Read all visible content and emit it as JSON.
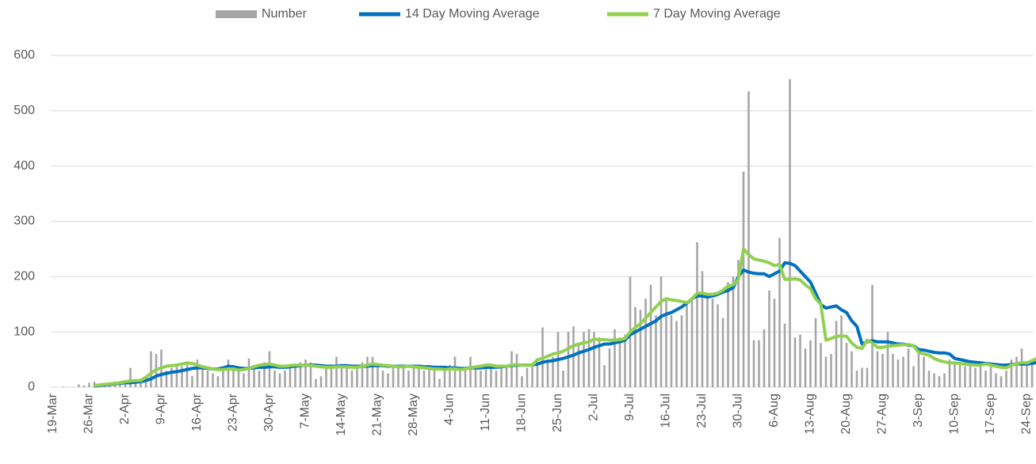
{
  "chart_data": {
    "type": "bar-line",
    "categories": [
      "19-Mar",
      null,
      null,
      null,
      null,
      null,
      null,
      "26-Mar",
      null,
      null,
      null,
      null,
      null,
      null,
      "2-Apr",
      null,
      null,
      null,
      null,
      null,
      null,
      "9-Apr",
      null,
      null,
      null,
      null,
      null,
      null,
      "16-Apr",
      null,
      null,
      null,
      null,
      null,
      null,
      "23-Apr",
      null,
      null,
      null,
      null,
      null,
      null,
      "30-Apr",
      null,
      null,
      null,
      null,
      null,
      null,
      "7-May",
      null,
      null,
      null,
      null,
      null,
      null,
      "14-May",
      null,
      null,
      null,
      null,
      null,
      null,
      "21-May",
      null,
      null,
      null,
      null,
      null,
      null,
      "28-May",
      null,
      null,
      null,
      null,
      null,
      null,
      "4-Jun",
      null,
      null,
      null,
      null,
      null,
      null,
      "11-Jun",
      null,
      null,
      null,
      null,
      null,
      null,
      "18-Jun",
      null,
      null,
      null,
      null,
      null,
      null,
      "25-Jun",
      null,
      null,
      null,
      null,
      null,
      null,
      "2-Jul",
      null,
      null,
      null,
      null,
      null,
      null,
      "9-Jul",
      null,
      null,
      null,
      null,
      null,
      null,
      "16-Jul",
      null,
      null,
      null,
      null,
      null,
      null,
      "23-Jul",
      null,
      null,
      null,
      null,
      null,
      null,
      "30-Jul",
      null,
      null,
      null,
      null,
      null,
      null,
      "6-Aug",
      null,
      null,
      null,
      null,
      null,
      null,
      "13-Aug",
      null,
      null,
      null,
      null,
      null,
      null,
      "20-Aug",
      null,
      null,
      null,
      null,
      null,
      null,
      "27-Aug",
      null,
      null,
      null,
      null,
      null,
      null,
      "3-Sep",
      null,
      null,
      null,
      null,
      null,
      null,
      "10-Sep",
      null,
      null,
      null,
      null,
      null,
      null,
      "17-Sep",
      null,
      null,
      null,
      null,
      null,
      null,
      "24-Sep",
      null,
      null
    ],
    "series": [
      {
        "name": "Number",
        "type": "bar",
        "color": "#a6a6a6",
        "values": [
          0,
          0,
          1,
          0,
          0,
          5,
          3,
          8,
          10,
          5,
          3,
          8,
          10,
          4,
          8,
          35,
          12,
          10,
          15,
          65,
          60,
          68,
          30,
          35,
          40,
          38,
          45,
          20,
          50,
          40,
          30,
          25,
          20,
          35,
          50,
          40,
          30,
          25,
          52,
          40,
          30,
          45,
          65,
          30,
          25,
          30,
          35,
          40,
          45,
          50,
          45,
          15,
          20,
          35,
          40,
          55,
          40,
          35,
          30,
          35,
          45,
          55,
          55,
          40,
          30,
          25,
          35,
          40,
          38,
          30,
          40,
          35,
          30,
          40,
          35,
          15,
          30,
          40,
          55,
          35,
          30,
          55,
          35,
          30,
          35,
          40,
          30,
          35,
          38,
          65,
          60,
          20,
          35,
          40,
          45,
          108,
          50,
          55,
          100,
          30,
          100,
          110,
          80,
          100,
          105,
          100,
          90,
          40,
          70,
          105,
          90,
          95,
          200,
          145,
          140,
          160,
          185,
          130,
          200,
          160,
          130,
          120,
          130,
          150,
          160,
          262,
          210,
          170,
          160,
          150,
          125,
          190,
          200,
          230,
          390,
          535,
          85,
          85,
          105,
          175,
          160,
          270,
          115,
          557,
          90,
          95,
          70,
          85,
          125,
          80,
          55,
          60,
          120,
          130,
          80,
          65,
          30,
          35,
          35,
          185,
          65,
          60,
          100,
          60,
          50,
          55,
          70,
          38,
          70,
          55,
          30,
          25,
          20,
          25,
          50,
          45,
          40,
          38,
          40,
          35,
          40,
          30,
          40,
          25,
          20,
          30,
          50,
          55,
          70,
          40,
          40,
          85
        ]
      },
      {
        "name": "14 Day Moving Average",
        "type": "line",
        "color": "#0070c0",
        "values": [
          null,
          null,
          null,
          null,
          null,
          null,
          null,
          null,
          2,
          3,
          4,
          5,
          6,
          7,
          8,
          8,
          9,
          10,
          12,
          15,
          20,
          23,
          25,
          27,
          28,
          30,
          32,
          34,
          35,
          35,
          34,
          33,
          33,
          35,
          38,
          37,
          35,
          34,
          34,
          35,
          36,
          36,
          37,
          37,
          36,
          36,
          37,
          38,
          39,
          40,
          40,
          40,
          39,
          38,
          38,
          38,
          39,
          39,
          38,
          38,
          38,
          38,
          39,
          39,
          39,
          38,
          38,
          38,
          38,
          38,
          38,
          38,
          37,
          37,
          36,
          36,
          36,
          35,
          35,
          34,
          34,
          35,
          35,
          35,
          36,
          36,
          36,
          37,
          38,
          39,
          40,
          40,
          40,
          40,
          42,
          45,
          47,
          48,
          50,
          52,
          55,
          58,
          62,
          65,
          68,
          72,
          75,
          78,
          78,
          80,
          82,
          85,
          95,
          100,
          105,
          110,
          115,
          120,
          128,
          132,
          135,
          140,
          145,
          152,
          160,
          165,
          165,
          163,
          165,
          168,
          172,
          175,
          180,
          200,
          212,
          208,
          206,
          205,
          205,
          200,
          205,
          210,
          225,
          224,
          220,
          210,
          200,
          190,
          170,
          150,
          143,
          145,
          147,
          140,
          135,
          120,
          110,
          78,
          82,
          84,
          82,
          82,
          82,
          80,
          78,
          78,
          76,
          75,
          68,
          67,
          65,
          63,
          62,
          62,
          60,
          52,
          50,
          48,
          46,
          45,
          44,
          43,
          42,
          41,
          40,
          40,
          41,
          42,
          42,
          42,
          43,
          45
        ]
      },
      {
        "name": "7 Day Moving Average",
        "type": "line",
        "color": "#92d050",
        "values": [
          null,
          null,
          null,
          null,
          null,
          null,
          null,
          null,
          3,
          4,
          5,
          6,
          7,
          8,
          10,
          11,
          12,
          12,
          18,
          25,
          32,
          35,
          38,
          39,
          40,
          42,
          44,
          43,
          40,
          37,
          35,
          33,
          32,
          32,
          33,
          33,
          31,
          32,
          34,
          37,
          40,
          41,
          42,
          40,
          38,
          38,
          39,
          40,
          40,
          40,
          39,
          38,
          37,
          36,
          36,
          37,
          37,
          37,
          36,
          36,
          38,
          40,
          42,
          41,
          40,
          39,
          38,
          37,
          37,
          38,
          37,
          36,
          35,
          34,
          33,
          33,
          32,
          33,
          33,
          32,
          33,
          35,
          37,
          38,
          40,
          40,
          38,
          38,
          38,
          40,
          41,
          40,
          40,
          40,
          50,
          52,
          56,
          60,
          62,
          65,
          70,
          75,
          78,
          80,
          82,
          87,
          86,
          86,
          85,
          85,
          86,
          88,
          100,
          108,
          115,
          125,
          135,
          145,
          155,
          160,
          158,
          157,
          155,
          153,
          160,
          170,
          170,
          168,
          168,
          170,
          175,
          183,
          185,
          195,
          250,
          240,
          232,
          230,
          228,
          225,
          220,
          222,
          195,
          195,
          196,
          194,
          185,
          178,
          160,
          150,
          85,
          88,
          92,
          93,
          92,
          80,
          72,
          70,
          85,
          80,
          72,
          72,
          74,
          75,
          76,
          77,
          77,
          75,
          63,
          60,
          58,
          52,
          48,
          46,
          44,
          44,
          43,
          42,
          41,
          40,
          40,
          42,
          40,
          38,
          36,
          35,
          40,
          42,
          45,
          44,
          48,
          52
        ]
      }
    ],
    "ylim": [
      0,
      600
    ],
    "yticks": [
      0,
      100,
      200,
      300,
      400,
      500,
      600
    ],
    "grid": true,
    "legend": "top"
  }
}
